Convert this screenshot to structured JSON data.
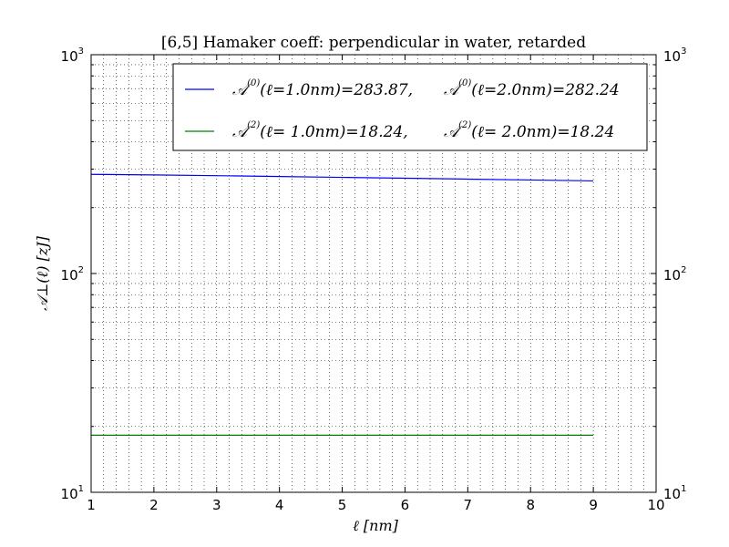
{
  "chart_data": {
    "type": "line",
    "title": "[6,5]  Hamaker coeff: perpendicular in water, retarded",
    "xlabel": "ℓ   [nm]",
    "ylabel": "𝒜⊥(ℓ)   [zJ]",
    "x_scale": "linear",
    "y_scale": "log",
    "xlim": [
      1,
      10
    ],
    "ylim": [
      10,
      1000
    ],
    "x_ticks": [
      "1",
      "2",
      "3",
      "4",
      "5",
      "6",
      "7",
      "8",
      "9",
      "10"
    ],
    "y_ticks": [
      {
        "base": "10",
        "exp": "1",
        "value": 10
      },
      {
        "base": "10",
        "exp": "2",
        "value": 100
      },
      {
        "base": "10",
        "exp": "3",
        "value": 1000
      }
    ],
    "grid": true,
    "legend_position": "top-right",
    "series": [
      {
        "name": "𝒜^(0)(ℓ=1.0nm)=283.87,   𝒜^(0)(ℓ=2.0nm)=282.24",
        "color": "#0000ff",
        "x": [
          1,
          2,
          3,
          4,
          5,
          6,
          7,
          8,
          9
        ],
        "y": [
          283.87,
          282.24,
          280.0,
          277.5,
          275.0,
          272.5,
          270.0,
          267.5,
          265.0
        ]
      },
      {
        "name": "𝒜^(2)(ℓ= 1.0nm)=18.24,   𝒜^(2)(ℓ= 2.0nm)=18.24",
        "color": "#008000",
        "x": [
          1,
          2,
          3,
          4,
          5,
          6,
          7,
          8,
          9
        ],
        "y": [
          18.24,
          18.24,
          18.24,
          18.24,
          18.24,
          18.24,
          18.24,
          18.24,
          18.24
        ]
      }
    ],
    "legend": [
      {
        "label_a": "𝒜",
        "sup_a": "(0)",
        "rest_a": "(ℓ=1.0nm)=283.87,",
        "label_b": "𝒜",
        "sup_b": "(0)",
        "rest_b": "(ℓ=2.0nm)=282.24"
      },
      {
        "label_a": "𝒜",
        "sup_a": "(2)",
        "rest_a": "(ℓ= 1.0nm)=18.24,",
        "label_b": "𝒜",
        "sup_b": "(2)",
        "rest_b": "(ℓ= 2.0nm)=18.24"
      }
    ]
  }
}
